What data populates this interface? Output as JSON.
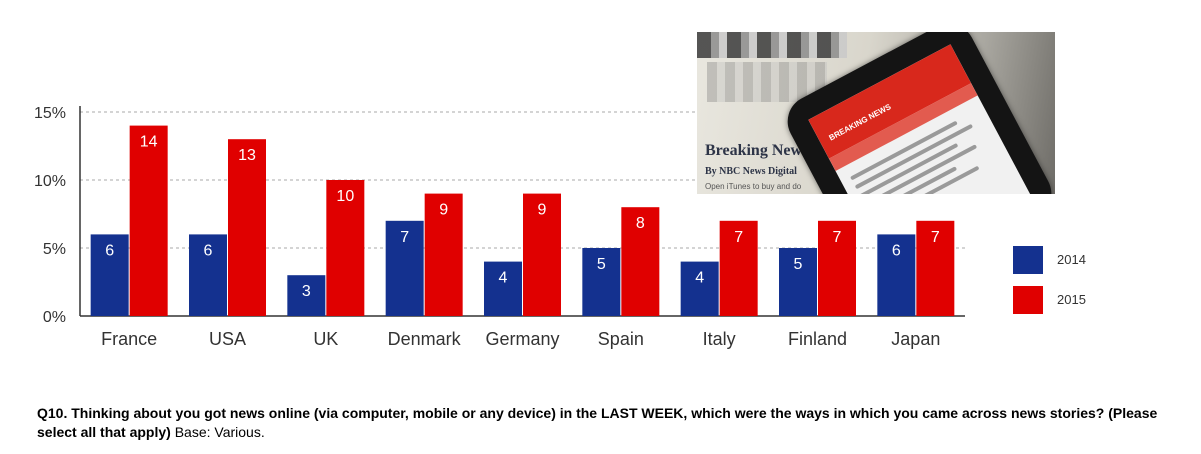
{
  "colors": {
    "series_2014": "#14318f",
    "series_2015": "#e00000",
    "grid": "#aaaaaa",
    "axis": "#333333"
  },
  "chart_data": {
    "type": "bar",
    "categories": [
      "France",
      "USA",
      "UK",
      "Denmark",
      "Germany",
      "Spain",
      "Italy",
      "Finland",
      "Japan"
    ],
    "series": [
      {
        "name": "2014",
        "values": [
          6,
          6,
          3,
          7,
          4,
          5,
          4,
          5,
          6
        ]
      },
      {
        "name": "2015",
        "values": [
          14,
          13,
          10,
          9,
          9,
          8,
          7,
          7,
          7
        ]
      }
    ],
    "yticks": [
      "0%",
      "5%",
      "10%",
      "15%"
    ],
    "ylim": [
      0,
      15
    ],
    "grid": "dashed horizontal",
    "legend": {
      "entries": [
        "2014",
        "2015"
      ],
      "position": "right"
    }
  },
  "photo": {
    "headline": "Breaking News",
    "byline": "By NBC News Digital",
    "subline": "Open iTunes to buy and do",
    "app_bar_title": "BREAKING NEWS"
  },
  "question": {
    "bold_text": "Q10. Thinking about you got news online (via computer, mobile or any device) in the LAST WEEK, which were the ways in which you came across news stories? (Please select all that apply)",
    "base_text": " Base: Various."
  }
}
